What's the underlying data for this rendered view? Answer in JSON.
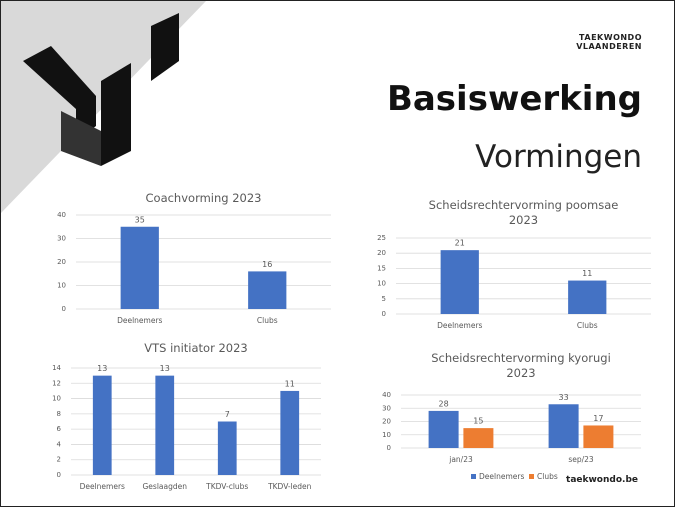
{
  "slide": {
    "title": "Basiswerking",
    "subtitle": "Vormingen",
    "brand": [
      "TAEKWONDO",
      "VLAANDEREN"
    ],
    "website": "taekwondo.be"
  },
  "chart_data": [
    {
      "type": "bar",
      "title": "Coachvorming 2023",
      "categories": [
        "Deelnemers",
        "Clubs"
      ],
      "values": [
        35,
        16
      ],
      "color": "#4472c4",
      "ylim": [
        0,
        40
      ],
      "yticks": [
        0,
        10,
        20,
        30,
        40
      ],
      "grid": true
    },
    {
      "type": "bar",
      "title": "Scheidsrechtervorming poomsae 2023",
      "categories": [
        "Deelnemers",
        "Clubs"
      ],
      "values": [
        21,
        11
      ],
      "color": "#4472c4",
      "ylim": [
        0,
        25
      ],
      "yticks": [
        0,
        5,
        10,
        15,
        20,
        25
      ],
      "grid": true
    },
    {
      "type": "bar",
      "title": "VTS initiator 2023",
      "categories": [
        "Deelnemers",
        "Geslaagden",
        "TKDV-clubs",
        "TKDV-leden"
      ],
      "values": [
        13,
        13,
        7,
        11
      ],
      "color": "#4472c4",
      "ylim": [
        0,
        14
      ],
      "yticks": [
        0,
        2,
        4,
        6,
        8,
        10,
        12,
        14
      ],
      "grid": true
    },
    {
      "type": "bar",
      "title": "Scheidsrechtervorming kyorugi 2023",
      "categories": [
        "jan/23",
        "sep/23"
      ],
      "series": [
        {
          "name": "Deelnemers",
          "color": "#4472c4",
          "values": [
            28,
            33
          ]
        },
        {
          "name": "Clubs",
          "color": "#ed7d31",
          "values": [
            15,
            17
          ]
        }
      ],
      "ylim": [
        0,
        40
      ],
      "yticks": [
        0,
        10,
        20,
        30,
        40
      ],
      "grid": true,
      "legend": "bottom"
    }
  ]
}
